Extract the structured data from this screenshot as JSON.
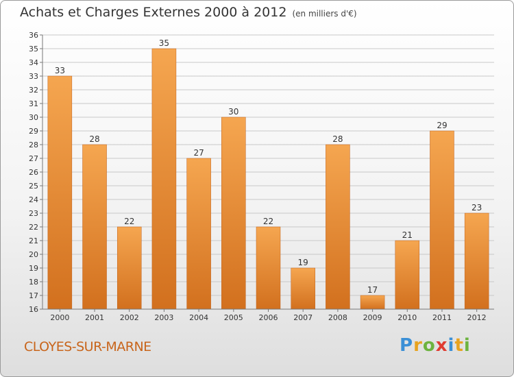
{
  "header": {
    "title": "Achats et Charges Externes 2000 à 2012",
    "subtitle": "(en milliers d'€)"
  },
  "footer": {
    "city": "CLOYES-SUR-MARNE",
    "logo_letters": [
      "P",
      "r",
      "o",
      "x",
      "i",
      "t",
      "i"
    ],
    "logo_colors": [
      "#3a8fd6",
      "#e8a320",
      "#6cb33f",
      "#e03c31",
      "#3a8fd6",
      "#e8a320",
      "#6cb33f"
    ]
  },
  "colors": {
    "bar_light": "#f5a650",
    "bar_dark": "#d2701e",
    "grid": "#c8c8c8",
    "axis": "#777777"
  },
  "chart_data": {
    "type": "bar",
    "categories": [
      "2000",
      "2001",
      "2002",
      "2003",
      "2004",
      "2005",
      "2006",
      "2007",
      "2008",
      "2009",
      "2010",
      "2011",
      "2012"
    ],
    "values": [
      33,
      28,
      22,
      35,
      27,
      30,
      22,
      19,
      28,
      17,
      21,
      29,
      23
    ],
    "ylim": [
      16,
      36
    ],
    "yticks": [
      16,
      17,
      18,
      19,
      20,
      21,
      22,
      23,
      24,
      25,
      26,
      27,
      28,
      29,
      30,
      31,
      32,
      33,
      34,
      35,
      36
    ],
    "grid": true,
    "title": "Achats et Charges Externes 2000 à 2012",
    "xlabel": "",
    "ylabel": ""
  }
}
